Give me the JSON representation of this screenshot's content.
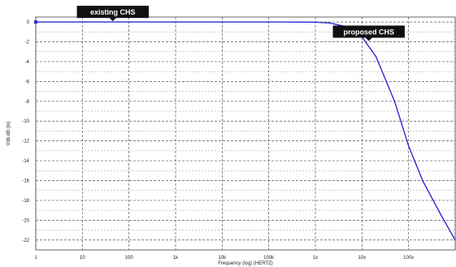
{
  "chart_data": {
    "type": "line",
    "xscale": "log",
    "xlim": [
      1,
      1000000000
    ],
    "ylim": [
      -23,
      0.5
    ],
    "xlabel": "Frequency (log) (HERTZ)",
    "ylabel": "Vdb dB (lo)",
    "x_tick_labels": [
      "1",
      "10",
      "100",
      "1k",
      "10k",
      "100k",
      "1x",
      "10x",
      "100x"
    ],
    "y_ticks": [
      0,
      -2,
      -4,
      -6,
      -8,
      -10,
      -12,
      -14,
      -16,
      -18,
      -20,
      -22
    ],
    "grid": true,
    "series": [
      {
        "color": "#2b2bd6",
        "x": [
          1,
          10,
          100,
          1000,
          10000,
          100000,
          1000000,
          2000000,
          5000000,
          10000000,
          20000000,
          50000000,
          100000000,
          200000000,
          500000000,
          1000000000
        ],
        "y": [
          0,
          0,
          0,
          0,
          0,
          0,
          -0.02,
          -0.1,
          -0.5,
          -1.5,
          -3.5,
          -8,
          -12.5,
          -16,
          -19.5,
          -22
        ]
      }
    ],
    "annotations": [
      {
        "text": "existing CHS",
        "x": 45,
        "y": 0
      },
      {
        "text": "proposed CHS",
        "x": 14000000,
        "y": -2
      }
    ]
  }
}
